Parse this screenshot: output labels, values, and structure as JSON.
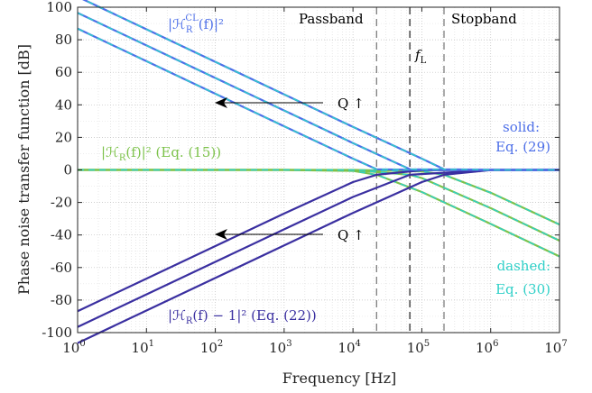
{
  "chart_data": {
    "type": "line",
    "xscale": "log",
    "xlim": [
      1,
      10000000
    ],
    "ylim": [
      -100,
      100
    ],
    "xlabel": "Frequency [Hz]",
    "ylabel": "Phase noise transfer function [dB]",
    "grid": true,
    "x_ticks": [
      1,
      10,
      100,
      1000,
      10000,
      100000,
      1000000,
      10000000
    ],
    "x_tick_labels": [
      {
        "base": "10",
        "exp": "0"
      },
      {
        "base": "10",
        "exp": "1"
      },
      {
        "base": "10",
        "exp": "2"
      },
      {
        "base": "10",
        "exp": "3"
      },
      {
        "base": "10",
        "exp": "4"
      },
      {
        "base": "10",
        "exp": "5"
      },
      {
        "base": "10",
        "exp": "6"
      },
      {
        "base": "10",
        "exp": "7"
      }
    ],
    "y_ticks": [
      -100,
      -80,
      -60,
      -40,
      -20,
      0,
      20,
      40,
      60,
      80,
      100
    ],
    "y_tick_labels": [
      "-100",
      "-80",
      "-60",
      "-40",
      "-20",
      "0",
      "20",
      "40",
      "60",
      "80",
      "100"
    ],
    "vlines": [
      {
        "x": 22000,
        "style": "dashed"
      },
      {
        "x": 67000,
        "style": "dashed-thick"
      },
      {
        "x": 210000,
        "style": "dashed"
      }
    ],
    "series": [
      {
        "curve": "closed-loop",
        "corner_hz": 22000,
        "values": [
          [
            1,
            86.8
          ],
          [
            10,
            66.8
          ],
          [
            100,
            46.8
          ],
          [
            1000,
            26.8
          ],
          [
            10000,
            6.9
          ],
          [
            22000,
            0.4
          ],
          [
            100000,
            0.0
          ],
          [
            1000000,
            0.0
          ],
          [
            10000000,
            0.0
          ]
        ]
      },
      {
        "curve": "closed-loop",
        "corner_hz": 67000,
        "values": [
          [
            1,
            96.5
          ],
          [
            10,
            76.5
          ],
          [
            100,
            56.5
          ],
          [
            1000,
            36.5
          ],
          [
            10000,
            16.5
          ],
          [
            67000,
            0.4
          ],
          [
            1000000,
            0.0
          ],
          [
            10000000,
            0.0
          ]
        ]
      },
      {
        "curve": "closed-loop",
        "corner_hz": 210000,
        "values": [
          [
            1,
            106.4
          ],
          [
            10,
            86.4
          ],
          [
            100,
            66.4
          ],
          [
            1000,
            46.4
          ],
          [
            10000,
            26.4
          ],
          [
            100000,
            6.9
          ],
          [
            210000,
            0.4
          ],
          [
            1000000,
            0.0
          ],
          [
            10000000,
            0.0
          ]
        ]
      },
      {
        "curve": "resonator",
        "corner_hz": 22000,
        "values": [
          [
            1,
            0.0
          ],
          [
            1000,
            0.0
          ],
          [
            10000,
            -0.6
          ],
          [
            22000,
            -3.0
          ],
          [
            100000,
            -13.6
          ],
          [
            1000000,
            -33.2
          ],
          [
            10000000,
            -53.2
          ]
        ]
      },
      {
        "curve": "resonator",
        "corner_hz": 67000,
        "values": [
          [
            1,
            0.0
          ],
          [
            1000,
            0.0
          ],
          [
            10000,
            -0.1
          ],
          [
            67000,
            -3.0
          ],
          [
            100000,
            -5.0
          ],
          [
            1000000,
            -23.5
          ],
          [
            10000000,
            -43.5
          ]
        ]
      },
      {
        "curve": "resonator",
        "corner_hz": 210000,
        "values": [
          [
            1,
            0.0
          ],
          [
            10000,
            0.0
          ],
          [
            100000,
            -0.9
          ],
          [
            210000,
            -3.0
          ],
          [
            1000000,
            -14.0
          ],
          [
            10000000,
            -33.6
          ]
        ]
      },
      {
        "curve": "error",
        "corner_hz": 22000,
        "values": [
          [
            1,
            -86.8
          ],
          [
            10,
            -66.8
          ],
          [
            100,
            -46.8
          ],
          [
            1000,
            -26.8
          ],
          [
            10000,
            -7.5
          ],
          [
            22000,
            -3.0
          ],
          [
            100000,
            -0.2
          ],
          [
            1000000,
            0.0
          ],
          [
            10000000,
            0.0
          ]
        ]
      },
      {
        "curve": "error",
        "corner_hz": 67000,
        "values": [
          [
            1,
            -96.5
          ],
          [
            10,
            -76.5
          ],
          [
            100,
            -56.5
          ],
          [
            1000,
            -36.5
          ],
          [
            10000,
            -16.6
          ],
          [
            67000,
            -3.0
          ],
          [
            1000000,
            0.0
          ],
          [
            10000000,
            0.0
          ]
        ]
      },
      {
        "curve": "error",
        "corner_hz": 210000,
        "values": [
          [
            1,
            -106.4
          ],
          [
            10,
            -86.4
          ],
          [
            100,
            -66.4
          ],
          [
            1000,
            -46.4
          ],
          [
            10000,
            -26.4
          ],
          [
            100000,
            -7.5
          ],
          [
            210000,
            -3.0
          ],
          [
            1000000,
            -0.1
          ],
          [
            10000000,
            0.0
          ]
        ]
      }
    ],
    "colors": {
      "closed_loop": "#4d6fe8",
      "closed_loop_dash": "#2fd0c8",
      "resonator": "#7cc24a",
      "error": "#3a2fa0",
      "vline": "#666666",
      "annotation_text": "#000000"
    },
    "annotations": {
      "top_formula": {
        "prefix": "|ℋ",
        "sub": "R",
        "sup": "CL",
        "suffix": "(f)|²"
      },
      "mid_formula": {
        "prefix": "|ℋ",
        "sub": "R",
        "suffix": "(f)|² (Eq. (15))"
      },
      "bottom_formula": {
        "prefix": "|ℋ",
        "sub": "R",
        "suffix": "(f) − 1|² (Eq. (22))"
      },
      "passband": "Passband",
      "stopband": "Stopband",
      "fl": {
        "base": "f",
        "sub": "L"
      },
      "q_upper": "Q ↑",
      "q_lower": "Q ↑",
      "solid_label": "solid:",
      "solid_eq": "Eq. (29)",
      "dashed_label": "dashed:",
      "dashed_eq": "Eq. (30)"
    }
  }
}
